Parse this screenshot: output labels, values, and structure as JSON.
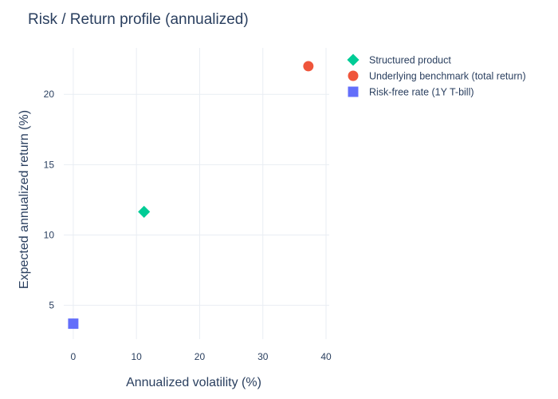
{
  "chart_data": {
    "type": "scatter",
    "title": "Risk / Return profile (annualized)",
    "xlabel": "Annualized volatility (%)",
    "ylabel": "Expected annualized return (%)",
    "xlim": [
      -1.5,
      40.5
    ],
    "ylim": [
      2.6,
      23.3
    ],
    "x_ticks": [
      0,
      10,
      20,
      30,
      40
    ],
    "y_ticks": [
      5,
      10,
      15,
      20
    ],
    "grid": true,
    "legend_position": "top-right",
    "series": [
      {
        "name": "Structured product",
        "x": [
          11.2
        ],
        "y": [
          11.65
        ],
        "color": "#00cc96",
        "symbol": "diamond"
      },
      {
        "name": "Underlying benchmark (total return)",
        "x": [
          37.2
        ],
        "y": [
          22.0
        ],
        "color": "#ef553b",
        "symbol": "circle"
      },
      {
        "name": "Risk-free rate (1Y T-bill)",
        "x": [
          0.0
        ],
        "y": [
          3.7
        ],
        "color": "#636efa",
        "symbol": "square"
      }
    ]
  }
}
